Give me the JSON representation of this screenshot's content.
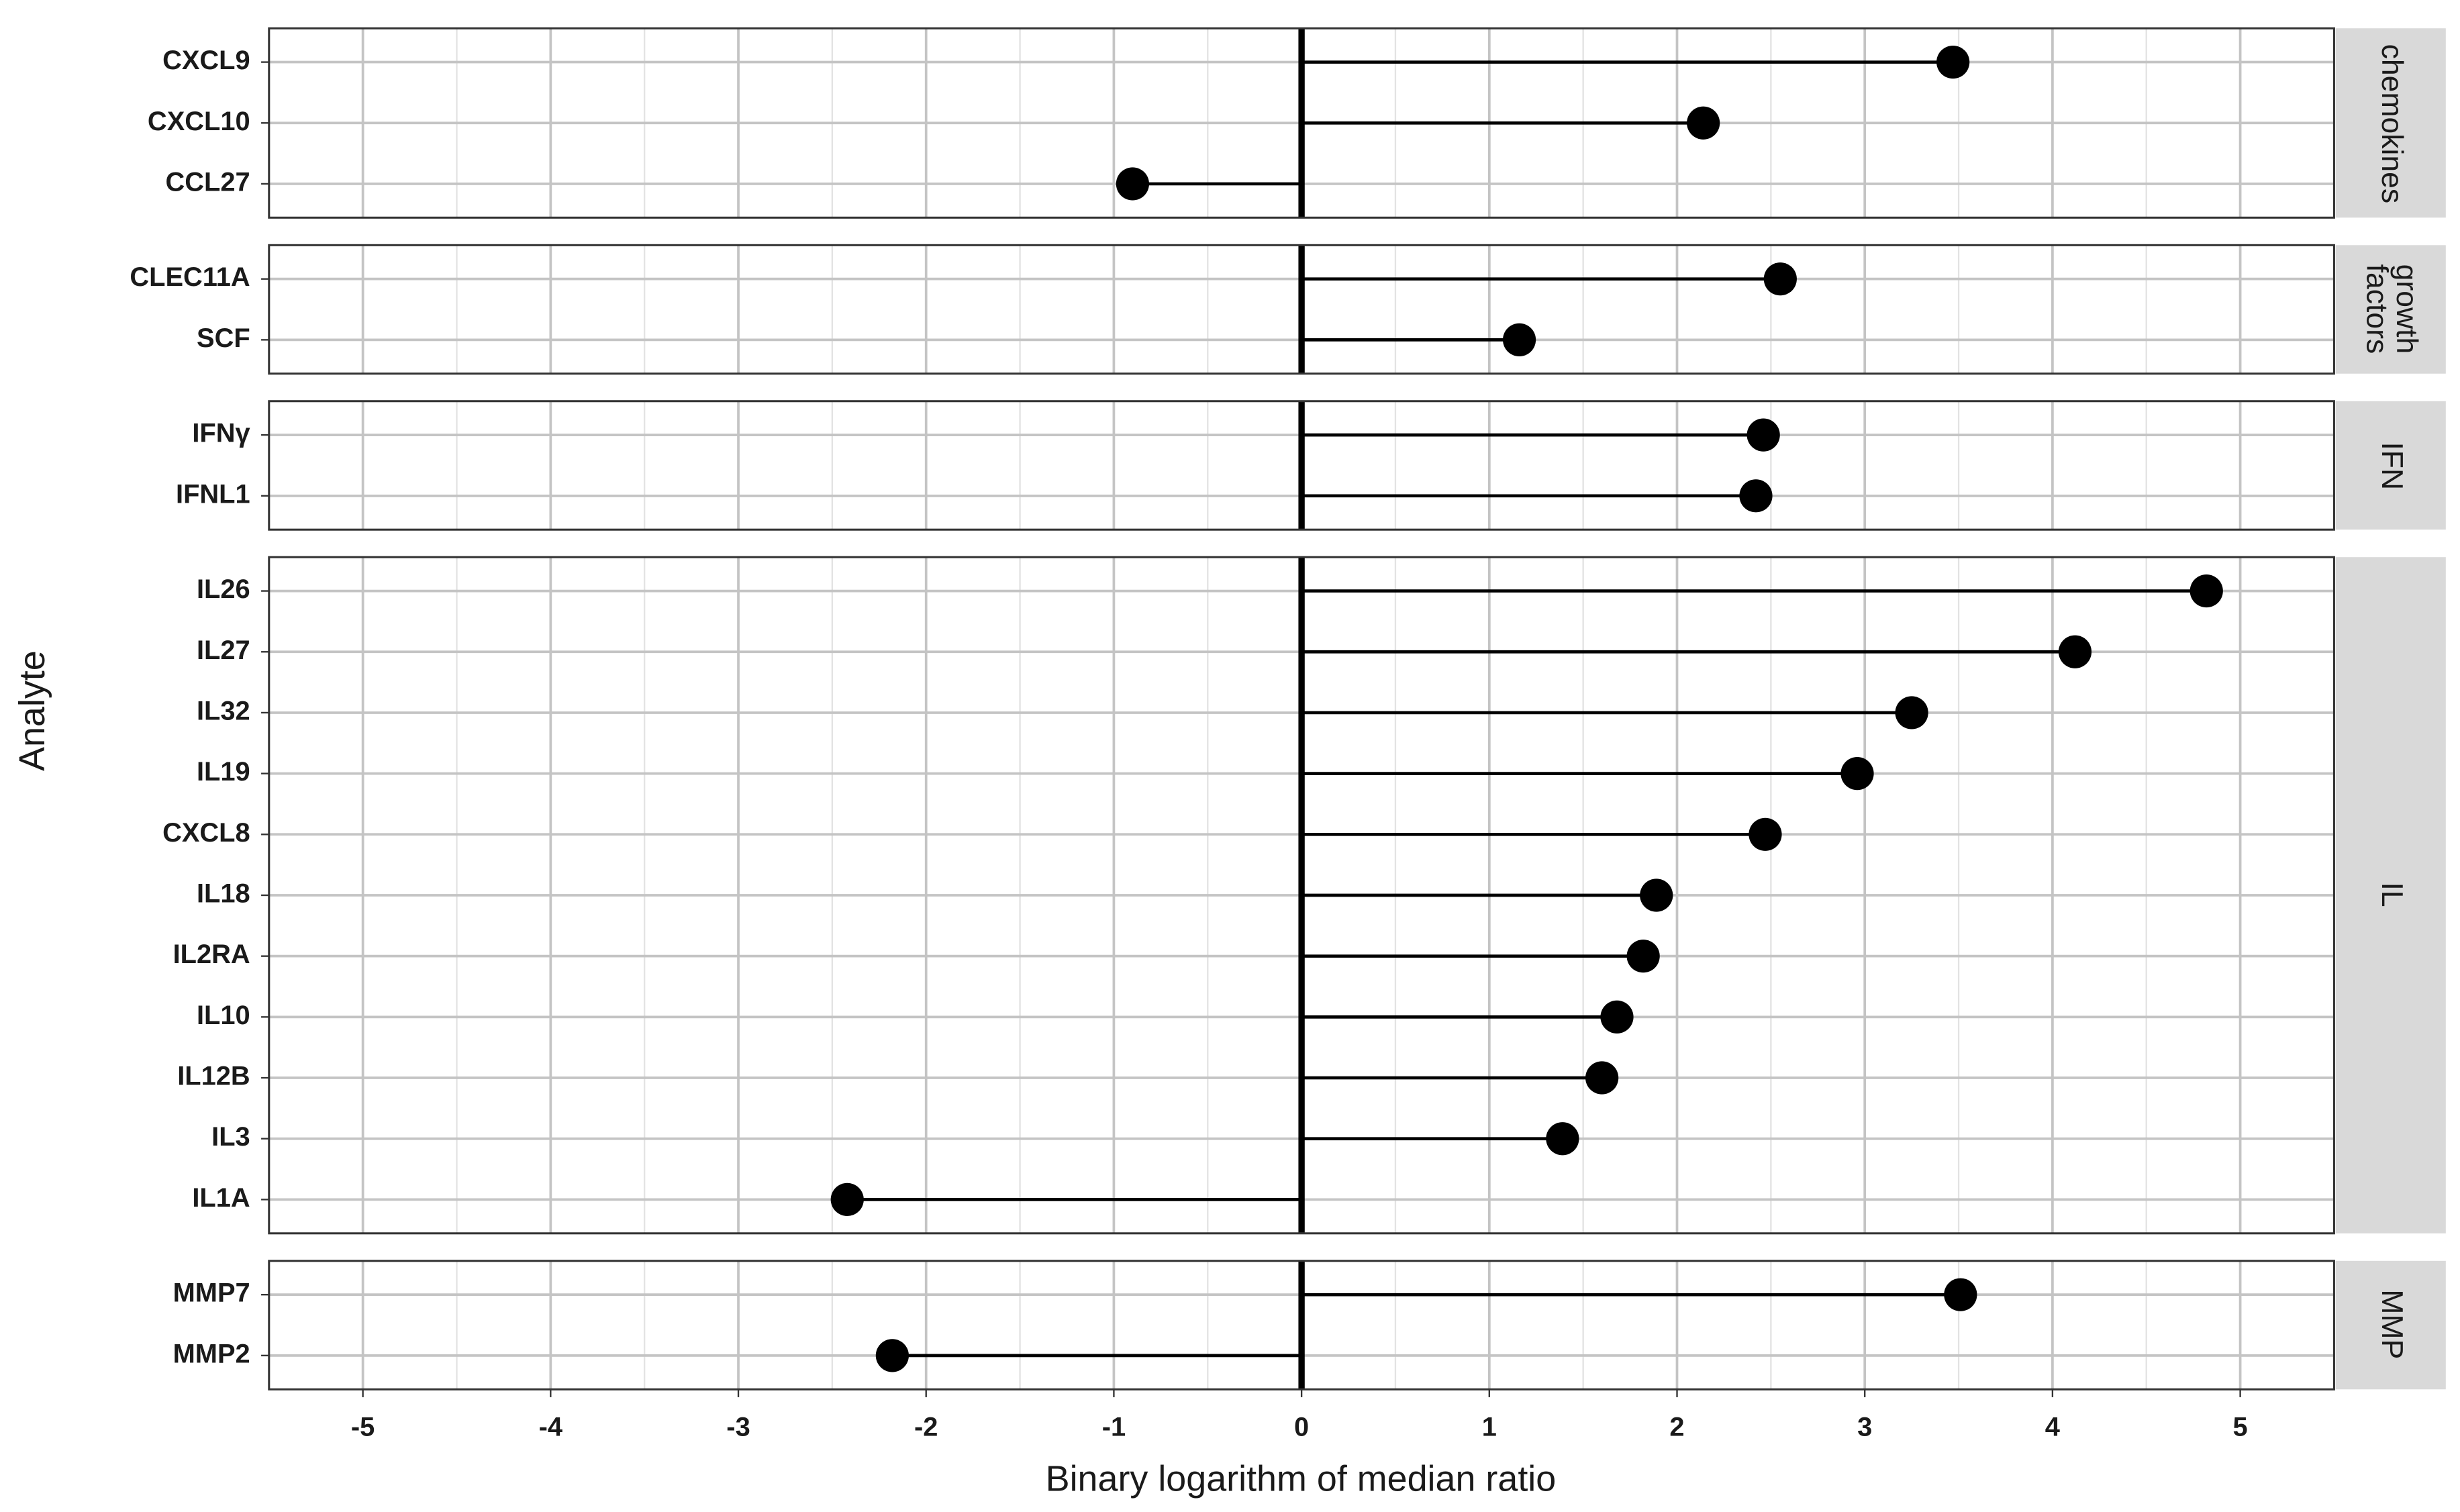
{
  "chart_data": {
    "type": "lollipop",
    "xlabel": "Binary logarithm of median ratio",
    "ylabel": "Analyte",
    "xlim": [
      -5.5,
      5.5
    ],
    "xticks": [
      -5,
      -4,
      -3,
      -2,
      -1,
      0,
      1,
      2,
      3,
      4,
      5
    ],
    "grid": true,
    "color": "#000000",
    "facets": [
      {
        "name": "chemokines",
        "categories": [
          "CXCL9",
          "CXCL10",
          "CCL27"
        ],
        "values": [
          3.47,
          2.14,
          -0.9
        ]
      },
      {
        "name": "growth factors",
        "categories": [
          "CLEC11A",
          "SCF"
        ],
        "values": [
          2.55,
          1.16
        ]
      },
      {
        "name": "IFN",
        "categories": [
          "IFNγ",
          "IFNL1"
        ],
        "values": [
          2.46,
          2.42
        ]
      },
      {
        "name": "IL",
        "categories": [
          "IL26",
          "IL27",
          "IL32",
          "IL19",
          "CXCL8",
          "IL18",
          "IL2RA",
          "IL10",
          "IL12B",
          "IL3",
          "IL1A"
        ],
        "values": [
          4.82,
          4.12,
          3.25,
          2.96,
          2.47,
          1.89,
          1.82,
          1.68,
          1.6,
          1.39,
          -2.42
        ]
      },
      {
        "name": "MMP",
        "categories": [
          "MMP7",
          "MMP2"
        ],
        "values": [
          3.51,
          -2.18
        ]
      }
    ]
  }
}
